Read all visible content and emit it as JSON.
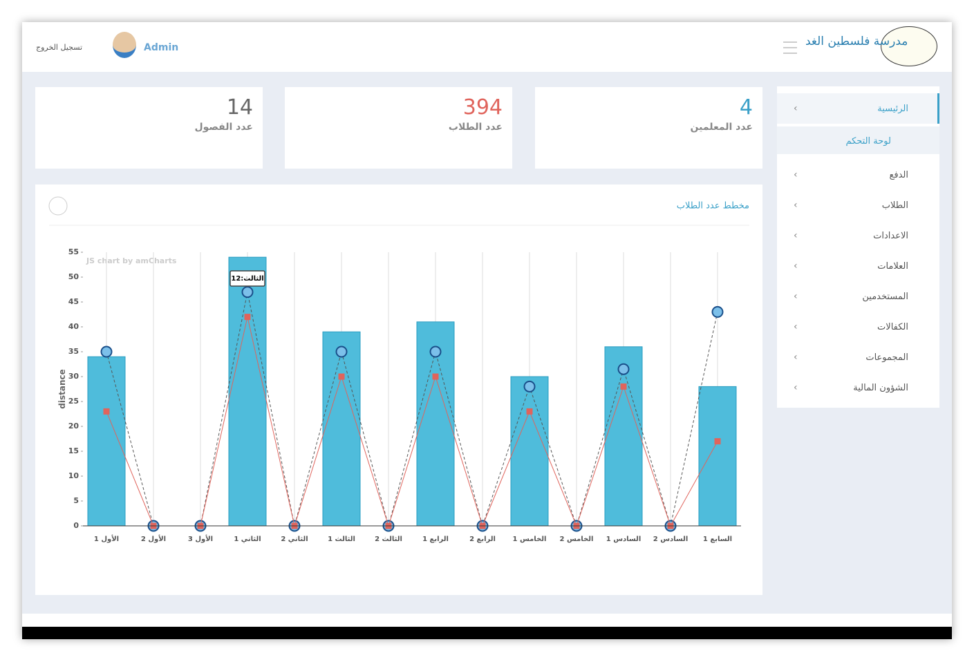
{
  "header": {
    "school_name": "مدرسة فلسطين الغد",
    "user": "Admin",
    "logout": "تسجيل الخروج"
  },
  "stats": [
    {
      "value": 4,
      "label": "عدد المعلمين"
    },
    {
      "value": 394,
      "label": "عدد الطلاب"
    },
    {
      "value": 14,
      "label": "عدد الفصول"
    }
  ],
  "sidebar": {
    "items": [
      "الرئيسية",
      "لوحة التحكم",
      "الدفع",
      "الطلاب",
      "الاعدادات",
      "العلامات",
      "المستخدمين",
      "الكفالات",
      "المجموعات",
      "الشؤون المالية"
    ]
  },
  "chart_data": {
    "type": "bar",
    "title": "مخطط عدد الطلاب",
    "y_label": "distance",
    "credit": "JS chart by amCharts",
    "tooltip": "الثالث:12",
    "categories": [
      "الأول 1",
      "الأول 2",
      "الأول 3",
      "الثاني 1",
      "الثاني 2",
      "الثالث 1",
      "الثالث 2",
      "الرابع 1",
      "الرابع 2",
      "الخامس 1",
      "الخامس 2",
      "السادس 1",
      "السادس 2",
      "السابع 1"
    ],
    "series": [
      {
        "type": "bar",
        "color": "#4fbcdb",
        "values": [
          34,
          0,
          0,
          54,
          0,
          39,
          0,
          41,
          0,
          30,
          0,
          36,
          0,
          28
        ]
      },
      {
        "type": "line",
        "color": "#555555",
        "dashed": true,
        "marker": "circle",
        "values": [
          35,
          0,
          0,
          47,
          0,
          35,
          0,
          35,
          0,
          28,
          0,
          31.5,
          0,
          43
        ]
      },
      {
        "type": "line",
        "color": "#e0645c",
        "dashed": false,
        "marker": "square",
        "values": [
          23,
          0,
          0,
          42,
          0,
          30,
          0,
          30,
          0,
          23,
          0,
          28,
          0,
          17
        ]
      }
    ],
    "ylim": [
      0,
      55
    ],
    "yticks": [
      0,
      5,
      10,
      15,
      20,
      25,
      30,
      35,
      40,
      45,
      50,
      55
    ],
    "grid": "x"
  }
}
